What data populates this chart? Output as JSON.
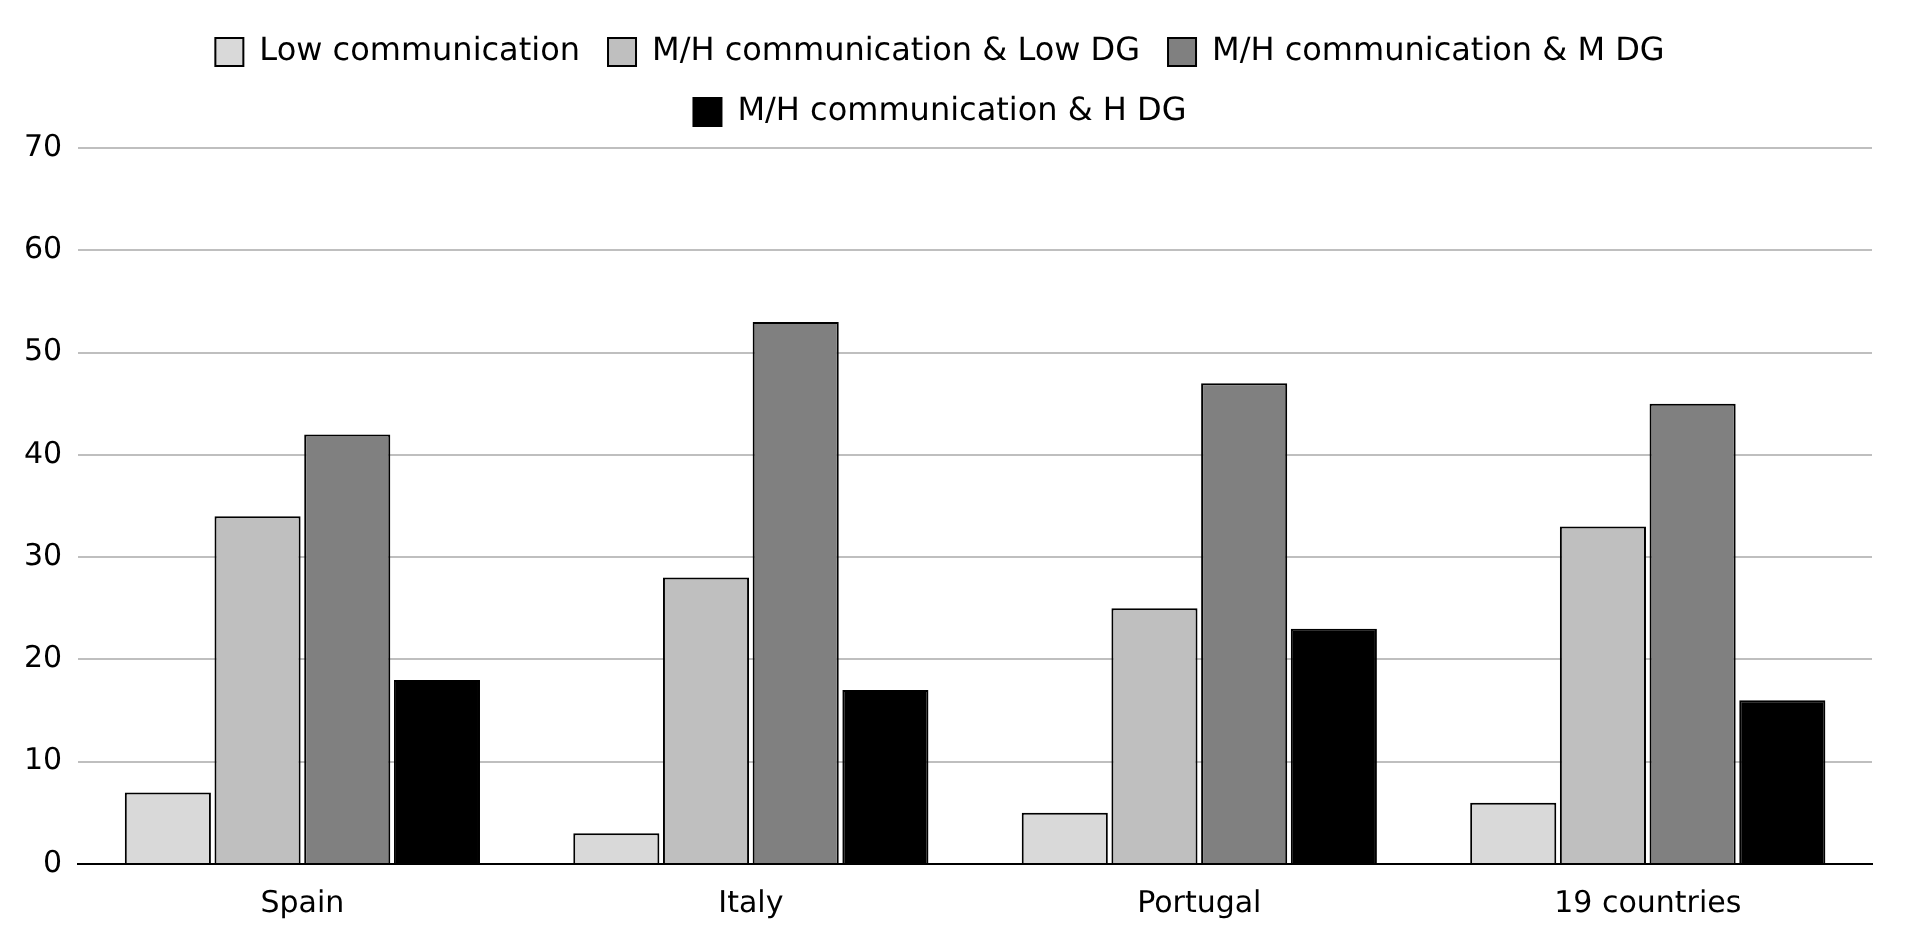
{
  "chart_data": {
    "type": "bar",
    "categories": [
      "Spain",
      "Italy",
      "Portugal",
      "19 countries"
    ],
    "series": [
      {
        "name": "Low communication",
        "color": "#d9d9d9",
        "values": [
          7,
          3,
          5,
          6
        ]
      },
      {
        "name": "M/H communication & Low DG",
        "color": "#bfbfbf",
        "values": [
          34,
          28,
          25,
          33
        ]
      },
      {
        "name": "M/H communication & M DG",
        "color": "#808080",
        "values": [
          42,
          53,
          47,
          45
        ]
      },
      {
        "name": "M/H communication & H DG",
        "color": "#000000",
        "values": [
          18,
          17,
          23,
          16
        ]
      }
    ],
    "ylim": [
      0,
      70
    ],
    "yticks": [
      0,
      10,
      20,
      30,
      40,
      50,
      60,
      70
    ],
    "grid": "y",
    "legend": "top"
  }
}
